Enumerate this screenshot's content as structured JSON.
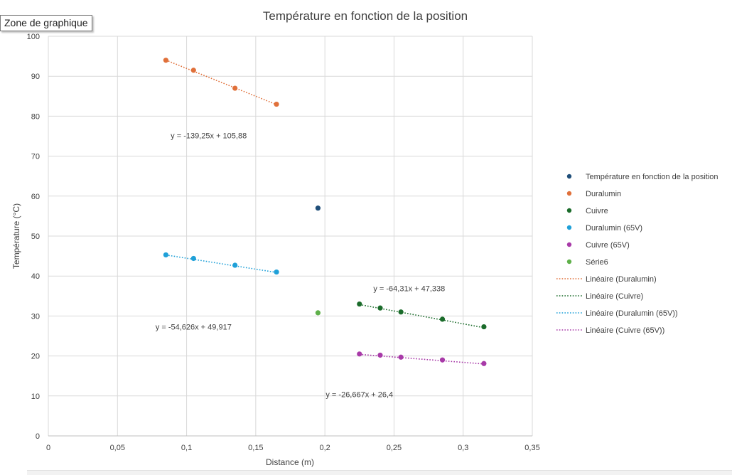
{
  "tooltip_text": "Zone de graphique",
  "chart_data": {
    "type": "scatter",
    "title": "Température en fonction de la position",
    "xlabel": "Distance (m)",
    "ylabel": "Température (°C)",
    "xlim": [
      0,
      0.35
    ],
    "ylim": [
      0,
      100
    ],
    "x_ticks": [
      {
        "value": 0,
        "label": "0"
      },
      {
        "value": 0.05,
        "label": "0,05"
      },
      {
        "value": 0.1,
        "label": "0,1"
      },
      {
        "value": 0.15,
        "label": "0,15"
      },
      {
        "value": 0.2,
        "label": "0,2"
      },
      {
        "value": 0.25,
        "label": "0,25"
      },
      {
        "value": 0.3,
        "label": "0,3"
      },
      {
        "value": 0.35,
        "label": "0,35"
      }
    ],
    "y_ticks": [
      {
        "value": 0,
        "label": "0"
      },
      {
        "value": 10,
        "label": "10"
      },
      {
        "value": 20,
        "label": "20"
      },
      {
        "value": 30,
        "label": "30"
      },
      {
        "value": 40,
        "label": "40"
      },
      {
        "value": 50,
        "label": "50"
      },
      {
        "value": 60,
        "label": "60"
      },
      {
        "value": 70,
        "label": "70"
      },
      {
        "value": 80,
        "label": "80"
      },
      {
        "value": 90,
        "label": "90"
      },
      {
        "value": 100,
        "label": "100"
      }
    ],
    "grid": true,
    "legend_position": "right",
    "series": [
      {
        "name": "Température en fonction de la position",
        "color": "#1f4e79",
        "points": [
          {
            "x": 0.195,
            "y": 57
          }
        ]
      },
      {
        "name": "Duralumin",
        "color": "#e0703a",
        "points": [
          {
            "x": 0.085,
            "y": 94
          },
          {
            "x": 0.105,
            "y": 91.5
          },
          {
            "x": 0.135,
            "y": 87
          },
          {
            "x": 0.165,
            "y": 83
          }
        ]
      },
      {
        "name": "Cuivre",
        "color": "#1a6b2a",
        "points": [
          {
            "x": 0.225,
            "y": 33
          },
          {
            "x": 0.24,
            "y": 32
          },
          {
            "x": 0.255,
            "y": 31
          },
          {
            "x": 0.285,
            "y": 29.2
          },
          {
            "x": 0.315,
            "y": 27.3
          }
        ]
      },
      {
        "name": "Duralumin (65V)",
        "color": "#1fa0d8",
        "points": [
          {
            "x": 0.085,
            "y": 45.3
          },
          {
            "x": 0.105,
            "y": 44.4
          },
          {
            "x": 0.135,
            "y": 42.7
          },
          {
            "x": 0.165,
            "y": 41
          }
        ]
      },
      {
        "name": "Cuivre (65V)",
        "color": "#a83aa8",
        "points": [
          {
            "x": 0.225,
            "y": 20.5
          },
          {
            "x": 0.24,
            "y": 20.2
          },
          {
            "x": 0.255,
            "y": 19.7
          },
          {
            "x": 0.285,
            "y": 19
          },
          {
            "x": 0.315,
            "y": 18.1
          }
        ]
      },
      {
        "name": "Série6",
        "color": "#5fb04a",
        "points": [
          {
            "x": 0.195,
            "y": 30.8
          }
        ]
      }
    ],
    "trendlines": [
      {
        "name": "Linéaire (Duralumin)",
        "color": "#e0703a",
        "x_range": [
          0.085,
          0.165
        ],
        "slope": -139.25,
        "intercept": 105.88,
        "equation": "y = -139,25x + 105,88",
        "label_at": {
          "x": 0.116,
          "y": 74.5
        }
      },
      {
        "name": "Linéaire (Cuivre)",
        "color": "#1a6b2a",
        "x_range": [
          0.225,
          0.315
        ],
        "slope": -64.31,
        "intercept": 47.338,
        "equation": "y = -64,31x + 47,338",
        "label_at": {
          "x": 0.261,
          "y": 36.2
        }
      },
      {
        "name": "Linéaire (Duralumin (65V))",
        "color": "#1fa0d8",
        "x_range": [
          0.085,
          0.165
        ],
        "slope": -54.626,
        "intercept": 49.917,
        "equation": "y = -54,626x + 49,917",
        "label_at": {
          "x": 0.105,
          "y": 26.6
        }
      },
      {
        "name": "Linéaire (Cuivre (65V))",
        "color": "#a83aa8",
        "x_range": [
          0.225,
          0.315
        ],
        "slope": -26.667,
        "intercept": 26.4,
        "equation": "y = -26,667x + 26,4",
        "label_at": {
          "x": 0.225,
          "y": 9.7
        }
      }
    ]
  }
}
